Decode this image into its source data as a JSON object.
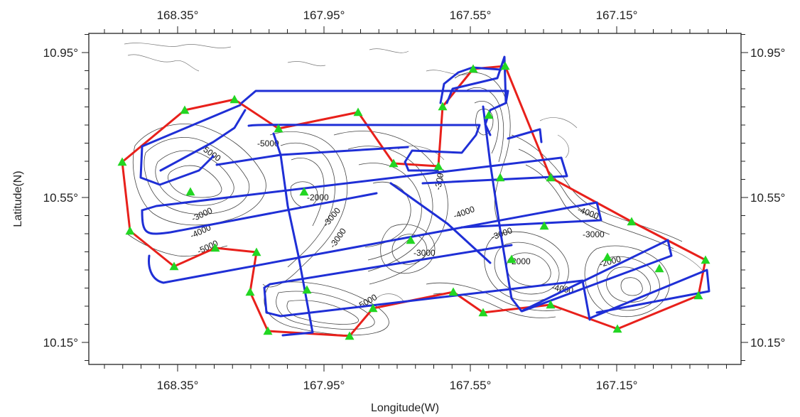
{
  "map": {
    "x_axis_title": "Longitude(W)",
    "y_axis_title": "Latitude(N)",
    "x_ticks": [
      "168.35°",
      "167.95°",
      "167.55°",
      "167.15°"
    ],
    "y_ticks": [
      "10.95°",
      "10.55°",
      "10.15°"
    ],
    "contour_labels": [
      "-5000",
      "-2000",
      "-3000",
      "-4000",
      "-5000",
      "-3000",
      "-3000",
      "-3000",
      "-2000",
      "-4000",
      "-4000",
      "-3000",
      "-4000",
      "-5000",
      "-3000",
      "-3000",
      "-2000",
      "-5000"
    ],
    "colors": {
      "survey_track": "#1f2fd6",
      "boundary": "#e8201b",
      "station_marker": "#22d622",
      "contour": "#444444"
    }
  }
}
